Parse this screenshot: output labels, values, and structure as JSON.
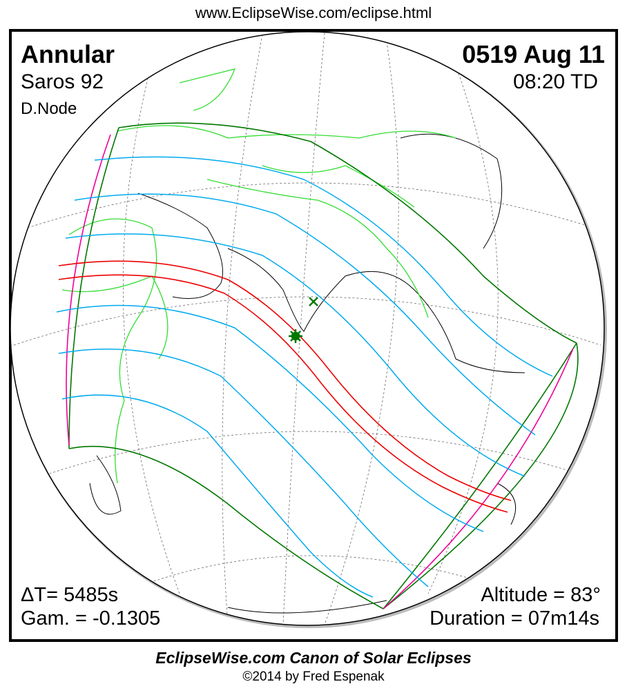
{
  "header": {
    "url": "www.EclipseWise.com/eclipse.html"
  },
  "eclipse": {
    "type": "Annular",
    "saros": "Saros  92",
    "node": "D.Node",
    "date": "0519 Aug 11",
    "time": "08:20 TD",
    "delta_t": "ΔT=   5485s",
    "gamma": "Gam. = -0.1305",
    "altitude": "Altitude = 83°",
    "duration": "Duration = 07m14s"
  },
  "footer": {
    "title": "EclipseWise.com Canon of Solar Eclipses",
    "copyright": "©2014 by Fred Espenak"
  },
  "colors": {
    "central_path": "#ee0000",
    "penumbral_lines": "#00aaee",
    "penumbral_limits": "#007700",
    "rise_set_curves": "#ee0099",
    "borders": "#33dd33",
    "coastlines": "#000000"
  },
  "markers": [
    {
      "icon": "greatest-eclipse-star-icon"
    },
    {
      "icon": "greatest-duration-x-icon"
    }
  ]
}
